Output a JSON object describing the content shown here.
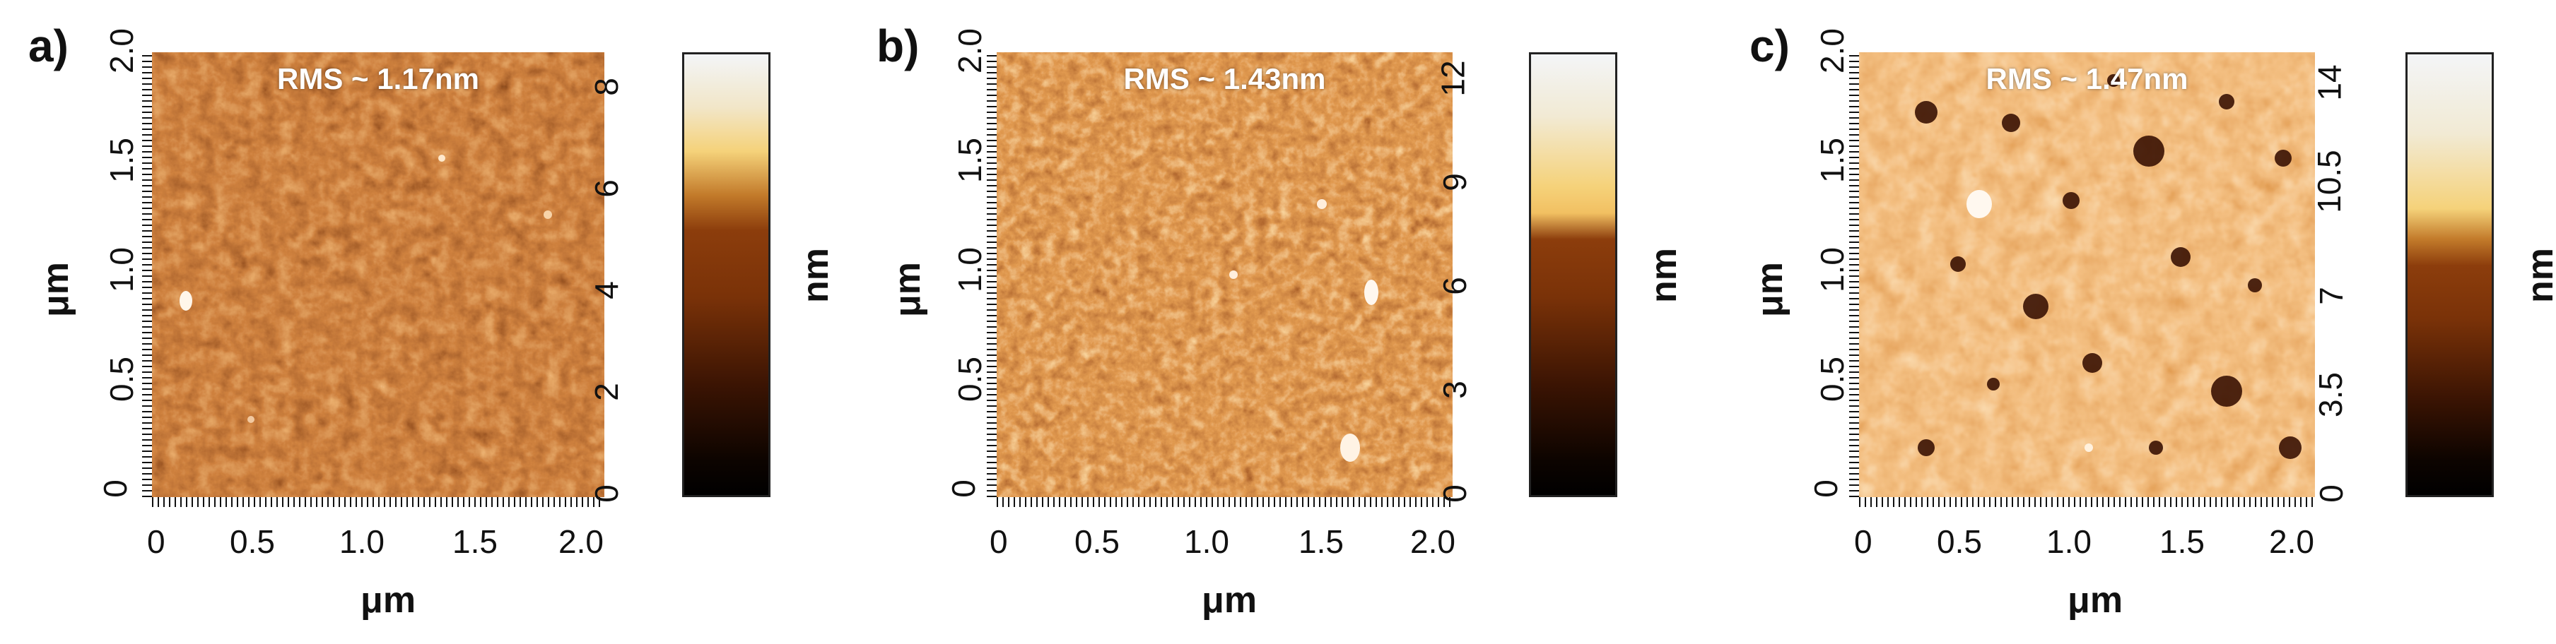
{
  "panels": [
    {
      "label": "a)",
      "annotation": "RMS ~ 1.17nm",
      "x_ticks": [
        "0",
        "0.5",
        "1.0",
        "1.5",
        "2.0"
      ],
      "y_ticks": [
        "0",
        "0.5",
        "1.0",
        "1.5",
        "2.0"
      ],
      "x_title": "μm",
      "y_title": "μm",
      "colorbar_ticks": [
        "0",
        "2",
        "4",
        "6",
        "8"
      ],
      "colorbar_title": "nm",
      "colorbar_max": 8.6
    },
    {
      "label": "b)",
      "annotation": "RMS ~ 1.43nm",
      "x_ticks": [
        "0",
        "0.5",
        "1.0",
        "1.5",
        "2.0"
      ],
      "y_ticks": [
        "0",
        "0.5",
        "1.0",
        "1.5",
        "2.0"
      ],
      "x_title": "μm",
      "y_title": "μm",
      "colorbar_ticks": [
        "0",
        "3",
        "6",
        "9",
        "12"
      ],
      "colorbar_title": "nm",
      "colorbar_max": 12.8
    },
    {
      "label": "c)",
      "annotation": "RMS ~ 1.47nm",
      "x_ticks": [
        "0",
        "0.5",
        "1.0",
        "1.5",
        "2.0"
      ],
      "y_ticks": [
        "0",
        "0.5",
        "1.0",
        "1.5",
        "2.0"
      ],
      "x_title": "μm",
      "y_title": "μm",
      "colorbar_ticks": [
        "0",
        "3.5",
        "7",
        "10.5",
        "14"
      ],
      "colorbar_title": "nm",
      "colorbar_max": 14.8
    }
  ],
  "colors": {
    "afm_dark": "#2a0c02",
    "afm_mid": "#a8400f",
    "afm_light": "#f2c9a0",
    "cbar_top": "#f3f5f7",
    "cbar_yellow": "#f5d27a",
    "cbar_brown": "#8c3d0c",
    "cbar_bottom": "#000000"
  }
}
